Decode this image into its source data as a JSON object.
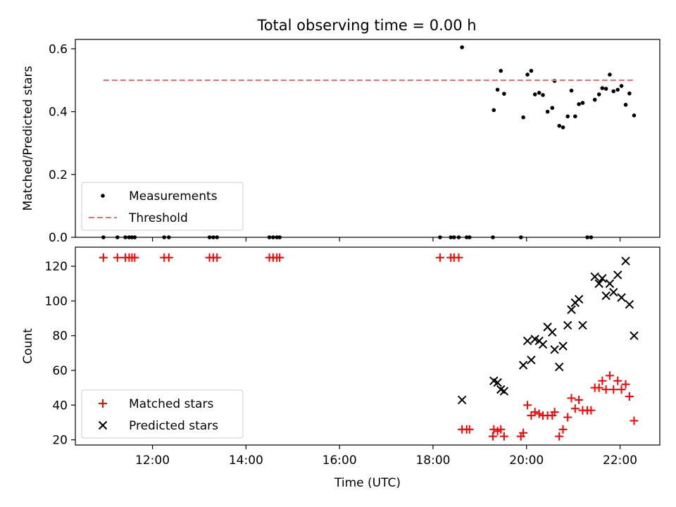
{
  "figure": {
    "title": "Total observing time = 0.00 h"
  },
  "chart_data": [
    {
      "type": "scatter",
      "panel": "top",
      "ylabel": "Matched/Predicted stars",
      "xlim": [
        10.35,
        22.85
      ],
      "ylim": [
        0,
        0.63
      ],
      "x_ticks": [
        12,
        14,
        16,
        18,
        20,
        22
      ],
      "y_ticks": [
        0.0,
        0.2,
        0.4,
        0.6
      ],
      "y_tick_labels": [
        "0.0",
        "0.2",
        "0.4",
        "0.6"
      ],
      "legend": {
        "position": "lower-left",
        "entries": [
          "Measurements",
          "Threshold"
        ]
      },
      "series": [
        {
          "name": "Measurements",
          "style": "dot",
          "color": "#000000",
          "points": [
            [
              10.95,
              0
            ],
            [
              11.25,
              0
            ],
            [
              11.42,
              0
            ],
            [
              11.5,
              0
            ],
            [
              11.56,
              0
            ],
            [
              11.62,
              0
            ],
            [
              12.25,
              0
            ],
            [
              12.35,
              0
            ],
            [
              13.22,
              0
            ],
            [
              13.3,
              0
            ],
            [
              13.38,
              0
            ],
            [
              14.5,
              0
            ],
            [
              14.58,
              0
            ],
            [
              14.66,
              0
            ],
            [
              14.72,
              0
            ],
            [
              18.15,
              0
            ],
            [
              18.38,
              0
            ],
            [
              18.45,
              0
            ],
            [
              18.55,
              0
            ],
            [
              18.72,
              0
            ],
            [
              18.78,
              0
            ],
            [
              19.28,
              0
            ],
            [
              19.88,
              0
            ],
            [
              21.3,
              0
            ],
            [
              21.38,
              0
            ],
            [
              18.62,
              0.605
            ],
            [
              19.3,
              0.405
            ],
            [
              19.38,
              0.47
            ],
            [
              19.45,
              0.53
            ],
            [
              19.52,
              0.457
            ],
            [
              19.93,
              0.382
            ],
            [
              20.02,
              0.518
            ],
            [
              20.1,
              0.53
            ],
            [
              20.18,
              0.455
            ],
            [
              20.27,
              0.46
            ],
            [
              20.35,
              0.453
            ],
            [
              20.45,
              0.4
            ],
            [
              20.55,
              0.412
            ],
            [
              20.6,
              0.498
            ],
            [
              20.7,
              0.355
            ],
            [
              20.78,
              0.35
            ],
            [
              20.88,
              0.385
            ],
            [
              20.96,
              0.467
            ],
            [
              21.04,
              0.385
            ],
            [
              21.12,
              0.424
            ],
            [
              21.2,
              0.428
            ],
            [
              21.46,
              0.438
            ],
            [
              21.55,
              0.455
            ],
            [
              21.62,
              0.475
            ],
            [
              21.7,
              0.473
            ],
            [
              21.78,
              0.518
            ],
            [
              21.86,
              0.465
            ],
            [
              21.95,
              0.47
            ],
            [
              22.03,
              0.482
            ],
            [
              22.12,
              0.422
            ],
            [
              22.2,
              0.458
            ],
            [
              22.3,
              0.388
            ]
          ]
        },
        {
          "name": "Threshold",
          "style": "dashed-line",
          "color": "#ff6b6b",
          "points": [
            [
              10.95,
              0.5
            ],
            [
              22.3,
              0.5
            ]
          ]
        }
      ]
    },
    {
      "type": "scatter",
      "panel": "bottom",
      "xlabel": "Time (UTC)",
      "ylabel": "Count",
      "xlim": [
        10.35,
        22.85
      ],
      "ylim": [
        17,
        131
      ],
      "x_ticks": [
        12,
        14,
        16,
        18,
        20,
        22
      ],
      "x_tick_labels": [
        "12:00",
        "14:00",
        "16:00",
        "18:00",
        "20:00",
        "22:00"
      ],
      "y_ticks": [
        20,
        40,
        60,
        80,
        100,
        120
      ],
      "y_tick_labels": [
        "20",
        "40",
        "60",
        "80",
        "100",
        "120"
      ],
      "legend": {
        "position": "lower-left",
        "entries": [
          "Matched stars",
          "Predicted stars"
        ]
      },
      "series": [
        {
          "name": "Matched stars",
          "style": "plus",
          "color": "#ff0000",
          "points": [
            [
              10.95,
              125
            ],
            [
              11.25,
              125
            ],
            [
              11.42,
              125
            ],
            [
              11.5,
              125
            ],
            [
              11.56,
              125
            ],
            [
              11.62,
              125
            ],
            [
              12.25,
              125
            ],
            [
              12.35,
              125
            ],
            [
              13.22,
              125
            ],
            [
              13.3,
              125
            ],
            [
              13.38,
              125
            ],
            [
              14.5,
              125
            ],
            [
              14.58,
              125
            ],
            [
              14.66,
              125
            ],
            [
              14.72,
              125
            ],
            [
              18.15,
              125
            ],
            [
              18.38,
              125
            ],
            [
              18.45,
              125
            ],
            [
              18.55,
              125
            ],
            [
              18.62,
              26
            ],
            [
              18.72,
              26
            ],
            [
              18.78,
              26
            ],
            [
              19.28,
              22
            ],
            [
              19.3,
              26
            ],
            [
              19.38,
              25
            ],
            [
              19.45,
              26
            ],
            [
              19.52,
              22
            ],
            [
              19.88,
              22
            ],
            [
              19.93,
              24
            ],
            [
              20.02,
              40
            ],
            [
              20.1,
              34
            ],
            [
              20.18,
              36
            ],
            [
              20.27,
              35
            ],
            [
              20.35,
              34
            ],
            [
              20.45,
              34
            ],
            [
              20.55,
              34
            ],
            [
              20.6,
              36
            ],
            [
              20.7,
              22
            ],
            [
              20.78,
              26
            ],
            [
              20.88,
              33
            ],
            [
              20.96,
              44
            ],
            [
              21.04,
              38
            ],
            [
              21.12,
              43
            ],
            [
              21.2,
              37
            ],
            [
              21.3,
              37
            ],
            [
              21.38,
              37
            ],
            [
              21.46,
              50
            ],
            [
              21.55,
              50
            ],
            [
              21.62,
              54
            ],
            [
              21.7,
              49
            ],
            [
              21.78,
              57
            ],
            [
              21.86,
              49
            ],
            [
              21.95,
              54
            ],
            [
              22.03,
              49
            ],
            [
              22.12,
              52
            ],
            [
              22.2,
              45
            ],
            [
              22.3,
              31
            ]
          ]
        },
        {
          "name": "Predicted stars",
          "style": "x",
          "color": "#000000",
          "points": [
            [
              18.62,
              43
            ],
            [
              19.3,
              54
            ],
            [
              19.38,
              53
            ],
            [
              19.45,
              49
            ],
            [
              19.52,
              48
            ],
            [
              19.93,
              63
            ],
            [
              20.02,
              77
            ],
            [
              20.1,
              66
            ],
            [
              20.18,
              78
            ],
            [
              20.27,
              77
            ],
            [
              20.35,
              75
            ],
            [
              20.45,
              85
            ],
            [
              20.55,
              82
            ],
            [
              20.6,
              72
            ],
            [
              20.7,
              62
            ],
            [
              20.78,
              74
            ],
            [
              20.88,
              86
            ],
            [
              20.96,
              95
            ],
            [
              21.04,
              99
            ],
            [
              21.12,
              101
            ],
            [
              21.2,
              86
            ],
            [
              21.46,
              114
            ],
            [
              21.55,
              110
            ],
            [
              21.62,
              113
            ],
            [
              21.7,
              103
            ],
            [
              21.78,
              110
            ],
            [
              21.86,
              105
            ],
            [
              21.95,
              115
            ],
            [
              22.03,
              102
            ],
            [
              22.12,
              123
            ],
            [
              22.2,
              98
            ],
            [
              22.3,
              80
            ]
          ]
        }
      ]
    }
  ]
}
